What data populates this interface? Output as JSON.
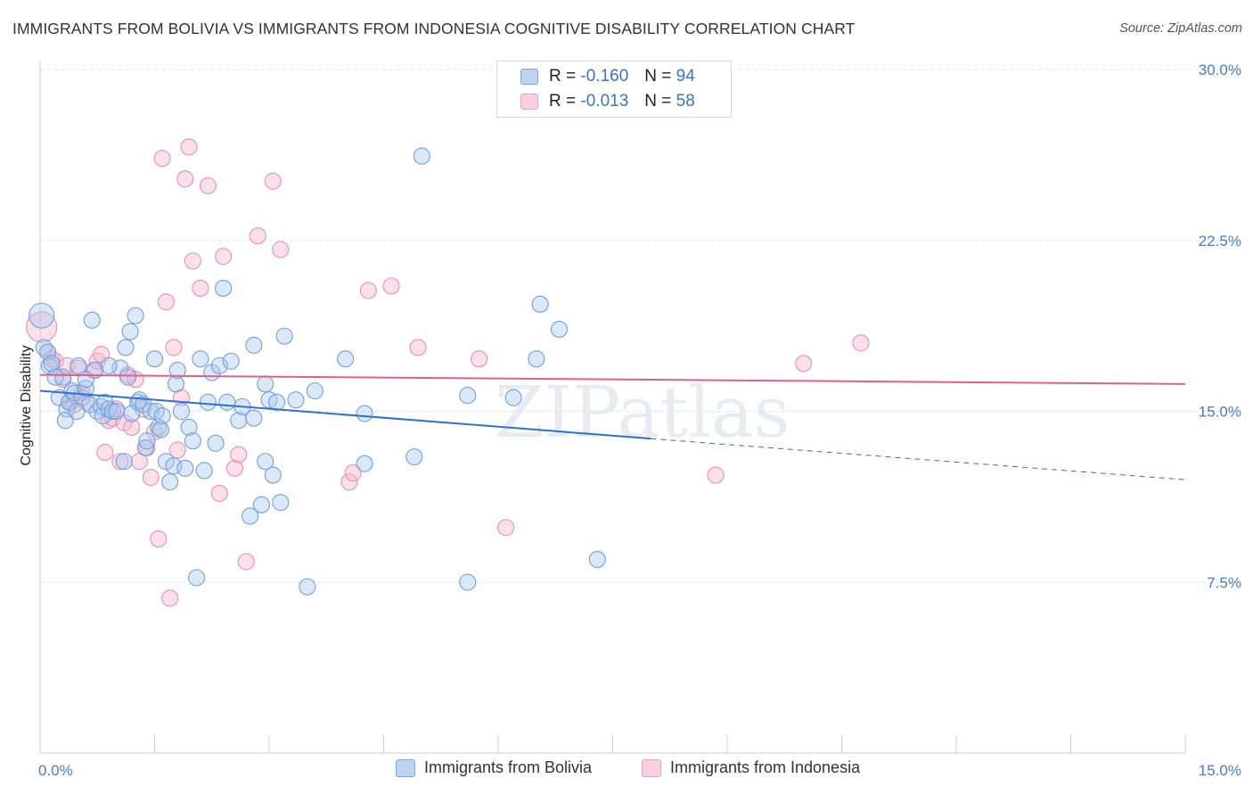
{
  "title": "IMMIGRANTS FROM BOLIVIA VS IMMIGRANTS FROM INDONESIA COGNITIVE DISABILITY CORRELATION CHART",
  "source": "Source: ZipAtlas.com",
  "watermark": "ZIPatlas",
  "legend_top": {
    "rows": [
      {
        "r_label": "R =",
        "r_value": "-0.160",
        "n_label": "N =",
        "n_value": "94"
      },
      {
        "r_label": "R =",
        "r_value": "-0.013",
        "n_label": "N =",
        "n_value": "58"
      }
    ]
  },
  "colors": {
    "blue_fill": "#a9c8ee",
    "blue_stroke": "#6f9fdc",
    "blue_line": "#2f6fd0",
    "pink_fill": "#f6b6cb",
    "pink_stroke": "#e88fae",
    "pink_line": "#e0608a",
    "tick_color": "#4a7cc7",
    "grid": "#e3e3e3"
  },
  "chart_data": {
    "type": "scatter",
    "title": "IMMIGRANTS FROM BOLIVIA VS IMMIGRANTS FROM INDONESIA COGNITIVE DISABILITY CORRELATION CHART",
    "xlabel": "",
    "ylabel": "Cognitive Disability",
    "xlim": [
      0,
      15
    ],
    "ylim": [
      0,
      30
    ],
    "x_tick_labels": [
      "0.0%",
      "15.0%"
    ],
    "y_ticks": [
      7.5,
      15.0,
      22.5,
      30.0
    ],
    "y_tick_labels": [
      "7.5%",
      "15.0%",
      "22.5%",
      "30.0%"
    ],
    "grid": "horizontal dashed",
    "legend_position": "bottom",
    "series": [
      {
        "name": "Immigrants from Bolivia",
        "color": "#6f9fdc",
        "trend": {
          "x0": 0,
          "y0": 15.9,
          "x1": 8.0,
          "y1": 13.8,
          "dashed_to_x": 15,
          "dashed_to_y": 12.0
        },
        "points": [
          [
            0.02,
            19.2
          ],
          [
            0.05,
            17.8
          ],
          [
            0.1,
            17.6
          ],
          [
            0.12,
            17.0
          ],
          [
            0.15,
            17.1
          ],
          [
            0.25,
            15.6
          ],
          [
            0.3,
            16.5
          ],
          [
            0.35,
            15.1
          ],
          [
            0.38,
            15.4
          ],
          [
            0.42,
            15.9
          ],
          [
            0.45,
            15.8
          ],
          [
            0.5,
            17.0
          ],
          [
            0.55,
            15.6
          ],
          [
            0.6,
            16.0
          ],
          [
            0.65,
            15.3
          ],
          [
            0.68,
            19.0
          ],
          [
            0.72,
            16.8
          ],
          [
            0.75,
            15.0
          ],
          [
            0.8,
            15.2
          ],
          [
            0.82,
            14.8
          ],
          [
            0.85,
            15.4
          ],
          [
            0.9,
            15.1
          ],
          [
            0.95,
            15.0
          ],
          [
            1.0,
            15.0
          ],
          [
            1.05,
            16.9
          ],
          [
            1.1,
            12.8
          ],
          [
            1.12,
            17.8
          ],
          [
            1.18,
            18.5
          ],
          [
            1.2,
            14.9
          ],
          [
            1.25,
            19.2
          ],
          [
            1.28,
            15.4
          ],
          [
            1.3,
            15.5
          ],
          [
            1.35,
            15.3
          ],
          [
            1.38,
            13.4
          ],
          [
            1.4,
            13.7
          ],
          [
            1.45,
            15.0
          ],
          [
            1.5,
            17.3
          ],
          [
            1.52,
            15.0
          ],
          [
            1.55,
            14.3
          ],
          [
            1.58,
            14.2
          ],
          [
            1.65,
            12.8
          ],
          [
            1.7,
            11.9
          ],
          [
            1.75,
            12.6
          ],
          [
            1.78,
            16.2
          ],
          [
            1.8,
            16.8
          ],
          [
            1.85,
            15.0
          ],
          [
            1.9,
            12.5
          ],
          [
            1.95,
            14.3
          ],
          [
            2.05,
            7.7
          ],
          [
            2.1,
            17.3
          ],
          [
            2.15,
            12.4
          ],
          [
            2.2,
            15.4
          ],
          [
            2.25,
            16.7
          ],
          [
            2.3,
            13.6
          ],
          [
            2.35,
            17.0
          ],
          [
            2.4,
            20.4
          ],
          [
            2.45,
            15.4
          ],
          [
            2.5,
            17.2
          ],
          [
            2.6,
            14.6
          ],
          [
            2.65,
            15.2
          ],
          [
            2.75,
            10.4
          ],
          [
            2.8,
            17.9
          ],
          [
            2.9,
            10.9
          ],
          [
            2.95,
            12.8
          ],
          [
            2.95,
            16.2
          ],
          [
            3.0,
            15.5
          ],
          [
            3.05,
            12.2
          ],
          [
            3.1,
            15.4
          ],
          [
            3.15,
            11.0
          ],
          [
            3.2,
            18.3
          ],
          [
            3.35,
            15.5
          ],
          [
            3.5,
            7.3
          ],
          [
            3.6,
            15.9
          ],
          [
            4.0,
            17.3
          ],
          [
            4.25,
            14.9
          ],
          [
            4.25,
            12.7
          ],
          [
            4.9,
            13.0
          ],
          [
            5.0,
            26.2
          ],
          [
            5.6,
            15.7
          ],
          [
            5.6,
            7.5
          ],
          [
            6.2,
            15.6
          ],
          [
            6.5,
            17.3
          ],
          [
            6.55,
            19.7
          ],
          [
            6.8,
            18.6
          ],
          [
            7.3,
            8.5
          ],
          [
            0.2,
            16.5
          ],
          [
            0.6,
            16.4
          ],
          [
            0.9,
            17.0
          ],
          [
            1.15,
            16.5
          ],
          [
            2.0,
            13.7
          ],
          [
            1.6,
            14.8
          ],
          [
            0.33,
            14.6
          ],
          [
            2.8,
            14.7
          ],
          [
            0.48,
            15.0
          ]
        ]
      },
      {
        "name": "Immigrants from Indonesia",
        "color": "#e88fae",
        "trend": {
          "x0": 0,
          "y0": 16.6,
          "x1": 15,
          "y1": 16.2
        },
        "points": [
          [
            0.02,
            18.7
          ],
          [
            0.1,
            17.6
          ],
          [
            0.15,
            17.3
          ],
          [
            0.2,
            17.2
          ],
          [
            0.3,
            16.4
          ],
          [
            0.35,
            17.0
          ],
          [
            0.4,
            15.4
          ],
          [
            0.45,
            15.3
          ],
          [
            0.5,
            16.9
          ],
          [
            0.55,
            15.8
          ],
          [
            0.6,
            15.4
          ],
          [
            0.7,
            16.8
          ],
          [
            0.75,
            17.2
          ],
          [
            0.8,
            17.5
          ],
          [
            0.85,
            13.2
          ],
          [
            0.9,
            14.6
          ],
          [
            0.95,
            14.7
          ],
          [
            1.0,
            15.1
          ],
          [
            1.05,
            12.8
          ],
          [
            1.1,
            14.5
          ],
          [
            1.15,
            16.6
          ],
          [
            1.2,
            14.3
          ],
          [
            1.25,
            16.4
          ],
          [
            1.3,
            12.8
          ],
          [
            1.35,
            15.1
          ],
          [
            1.4,
            13.4
          ],
          [
            1.45,
            12.1
          ],
          [
            1.5,
            14.1
          ],
          [
            1.55,
            9.4
          ],
          [
            1.6,
            26.1
          ],
          [
            1.65,
            19.8
          ],
          [
            1.7,
            6.8
          ],
          [
            1.75,
            17.8
          ],
          [
            1.8,
            13.3
          ],
          [
            1.85,
            15.6
          ],
          [
            1.9,
            25.2
          ],
          [
            1.95,
            26.6
          ],
          [
            2.0,
            21.6
          ],
          [
            2.1,
            20.4
          ],
          [
            2.2,
            24.9
          ],
          [
            2.35,
            11.4
          ],
          [
            2.4,
            21.8
          ],
          [
            2.55,
            12.5
          ],
          [
            2.6,
            13.1
          ],
          [
            2.7,
            8.4
          ],
          [
            2.85,
            22.7
          ],
          [
            3.05,
            25.1
          ],
          [
            3.15,
            22.1
          ],
          [
            4.05,
            11.9
          ],
          [
            4.1,
            12.3
          ],
          [
            4.3,
            20.3
          ],
          [
            4.6,
            20.5
          ],
          [
            4.95,
            17.8
          ],
          [
            5.75,
            17.3
          ],
          [
            6.1,
            9.9
          ],
          [
            8.85,
            12.2
          ],
          [
            10.0,
            17.1
          ],
          [
            10.75,
            18.0
          ]
        ]
      }
    ]
  },
  "legend_bottom": {
    "items": [
      {
        "label": "Immigrants from Bolivia"
      },
      {
        "label": "Immigrants from Indonesia"
      }
    ]
  }
}
